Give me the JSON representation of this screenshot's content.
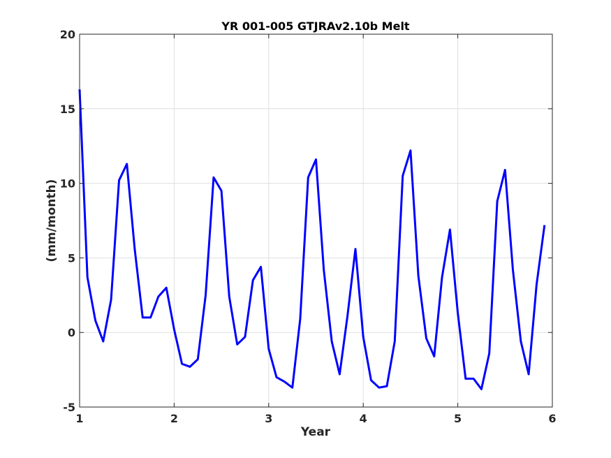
{
  "chart_data": {
    "type": "line",
    "title": "YR 001-005 GTJRAv2.10b Melt",
    "xlabel": "Year",
    "ylabel": "(mm/month)",
    "xlim": [
      1,
      6
    ],
    "ylim": [
      -5,
      20
    ],
    "xticks": [
      1,
      2,
      3,
      4,
      5,
      6
    ],
    "yticks": [
      -5,
      0,
      5,
      10,
      15,
      20
    ],
    "xtick_labels": [
      "1",
      "2",
      "3",
      "4",
      "5",
      "6"
    ],
    "ytick_labels": [
      "-5",
      "0",
      "5",
      "10",
      "15",
      "20"
    ],
    "grid": true,
    "series": [
      {
        "color": "#0000ff",
        "x": [
          1.0,
          1.083,
          1.167,
          1.25,
          1.333,
          1.417,
          1.5,
          1.583,
          1.667,
          1.75,
          1.833,
          1.917,
          2.0,
          2.083,
          2.167,
          2.25,
          2.333,
          2.417,
          2.5,
          2.583,
          2.667,
          2.75,
          2.833,
          2.917,
          3.0,
          3.083,
          3.167,
          3.25,
          3.333,
          3.417,
          3.5,
          3.583,
          3.667,
          3.75,
          3.833,
          3.917,
          4.0,
          4.083,
          4.167,
          4.25,
          4.333,
          4.417,
          4.5,
          4.583,
          4.667,
          4.75,
          4.833,
          4.917,
          5.0,
          5.083,
          5.167,
          5.25,
          5.333,
          5.417,
          5.5,
          5.583,
          5.667,
          5.75,
          5.833,
          5.917
        ],
        "y": [
          16.3,
          3.7,
          0.8,
          -0.6,
          2.2,
          10.2,
          11.3,
          5.6,
          1.0,
          1.0,
          2.4,
          3.0,
          0.2,
          -2.1,
          -2.3,
          -1.8,
          2.5,
          10.4,
          9.5,
          2.4,
          -0.8,
          -0.3,
          3.5,
          4.4,
          -1.1,
          -3.0,
          -3.3,
          -3.7,
          0.9,
          10.4,
          11.6,
          4.2,
          -0.6,
          -2.8,
          1.1,
          5.6,
          -0.3,
          -3.2,
          -3.7,
          -3.6,
          -0.6,
          10.5,
          12.2,
          3.8,
          -0.4,
          -1.6,
          3.7,
          6.9,
          1.3,
          -3.1,
          -3.1,
          -3.8,
          -1.4,
          8.8,
          10.9,
          4.2,
          -0.6,
          -2.8,
          3.2,
          7.2
        ]
      }
    ]
  }
}
